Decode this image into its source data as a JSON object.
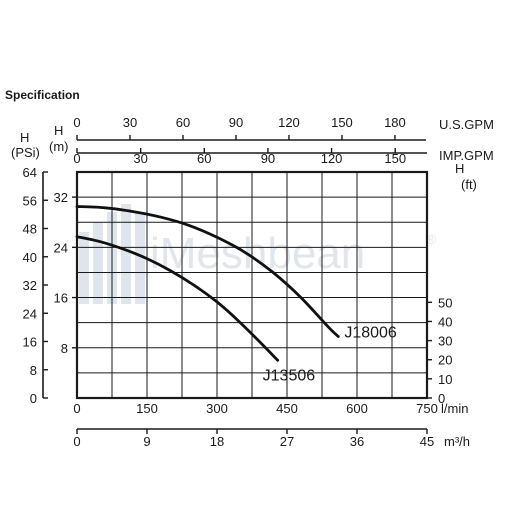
{
  "page": {
    "title": "Specification"
  },
  "watermark": {
    "text": "iMeshbean",
    "mark": "®"
  },
  "axes": {
    "usgpm": {
      "label": "U.S.GPM",
      "ticks": [
        "0",
        "30",
        "60",
        "90",
        "120",
        "150",
        "180"
      ]
    },
    "impgpm": {
      "label": "IMP.GPM",
      "ticks": [
        "0",
        "30",
        "60",
        "90",
        "120",
        "150"
      ]
    },
    "lmin": {
      "label": "l/min",
      "ticks": [
        "0",
        "150",
        "300",
        "450",
        "600",
        "750"
      ]
    },
    "m3h": {
      "label": "m³/h",
      "ticks": [
        "0",
        "9",
        "18",
        "27",
        "36",
        "45"
      ]
    },
    "psi": {
      "label_top": "H",
      "label_bottom": "(PSi)",
      "ticks": [
        "64",
        "56",
        "48",
        "40",
        "32",
        "24",
        "16",
        "8",
        "0"
      ]
    },
    "meters": {
      "label_top": "H",
      "label_bottom": "(m)",
      "ticks": [
        "32",
        "24",
        "16",
        "8"
      ]
    },
    "feet": {
      "label_top": "H",
      "label_bottom": "(ft)",
      "ticks": [
        "50",
        "40",
        "30",
        "20",
        "10",
        "0"
      ]
    }
  },
  "chart_data": {
    "type": "line",
    "title": "Specification",
    "xlabel": "l/min",
    "ylabel": "H (m)",
    "xlim": [
      0,
      750
    ],
    "ylim": [
      0,
      36
    ],
    "grid": true,
    "series": [
      {
        "name": "J18006",
        "x": [
          0,
          60,
          120,
          180,
          240,
          300,
          360,
          420,
          480,
          540,
          560
        ],
        "y": [
          30.5,
          30.3,
          29.7,
          28.8,
          27.5,
          25.6,
          23.2,
          20.0,
          16.0,
          11.2,
          9.8
        ]
      },
      {
        "name": "J13506",
        "x": [
          0,
          50,
          100,
          150,
          200,
          250,
          300,
          350,
          400,
          430
        ],
        "y": [
          25.7,
          24.9,
          23.7,
          22.2,
          20.3,
          18.0,
          15.3,
          12.0,
          8.3,
          6.0
        ]
      }
    ]
  }
}
